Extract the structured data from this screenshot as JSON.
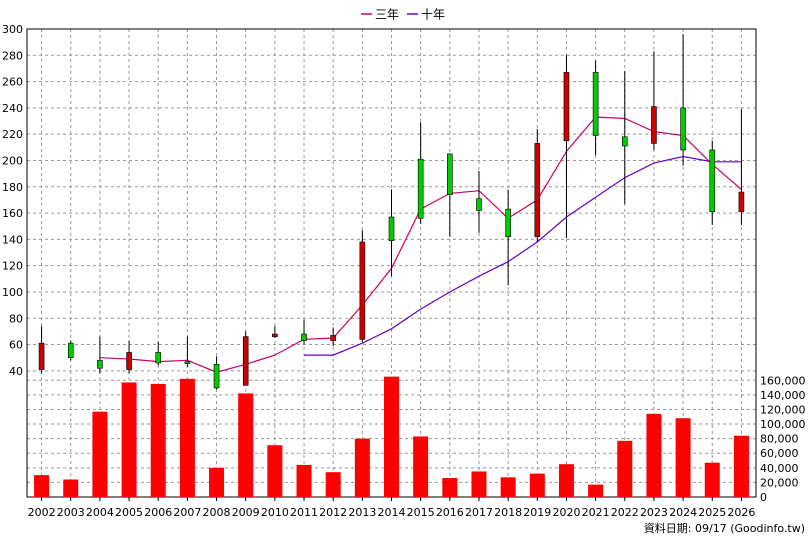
{
  "chart_data": {
    "type": "candlestick",
    "legend": {
      "position": "top-center",
      "items": [
        {
          "name": "三年",
          "color": "#cc0066"
        },
        {
          "name": "十年",
          "color": "#6600cc"
        }
      ]
    },
    "grid": true,
    "price_axis": {
      "ylim": [
        30,
        300
      ],
      "ticks": [
        40,
        60,
        80,
        100,
        120,
        140,
        160,
        180,
        200,
        220,
        240,
        260,
        280,
        300
      ]
    },
    "volume_axis": {
      "ylim": [
        0,
        170000
      ],
      "ticks": [
        "0",
        "20,000",
        "40,000",
        "60,000",
        "80,000",
        "100,000",
        "120,000",
        "140,000",
        "160,000"
      ],
      "tick_values": [
        0,
        20000,
        40000,
        60000,
        80000,
        100000,
        120000,
        140000,
        160000
      ]
    },
    "years": [
      "2002",
      "2003",
      "2004",
      "2005",
      "2006",
      "2007",
      "2008",
      "2009",
      "2010",
      "2011",
      "2012",
      "2013",
      "2014",
      "2015",
      "2016",
      "2017",
      "2018",
      "2019",
      "2020",
      "2021",
      "2022",
      "2023",
      "2024",
      "2025",
      "2026"
    ],
    "candles": [
      {
        "open": 61,
        "close": 41,
        "high": 74,
        "low": 38
      },
      {
        "open": 50,
        "close": 61,
        "high": 63,
        "low": 48
      },
      {
        "open": 42,
        "close": 48,
        "high": 66,
        "low": 38
      },
      {
        "open": 54,
        "close": 41,
        "high": 63,
        "low": 38
      },
      {
        "open": 46,
        "close": 54,
        "high": 62,
        "low": 44
      },
      {
        "open": 47,
        "close": 47,
        "high": 66,
        "low": 43
      },
      {
        "open": 27,
        "close": 45,
        "high": 51,
        "low": 26
      },
      {
        "open": 66,
        "close": 29,
        "high": 70,
        "low": 29
      },
      {
        "open": 68,
        "close": 66,
        "high": 74,
        "low": 65
      },
      {
        "open": 63,
        "close": 68,
        "high": 79,
        "low": 60
      },
      {
        "open": 67,
        "close": 63,
        "high": 73,
        "low": 59
      },
      {
        "open": 138,
        "close": 64,
        "high": 147,
        "low": 62
      },
      {
        "open": 139,
        "close": 157,
        "high": 178,
        "low": 112
      },
      {
        "open": 156,
        "close": 201,
        "high": 229,
        "low": 152
      },
      {
        "open": 174,
        "close": 205,
        "high": 205,
        "low": 142
      },
      {
        "open": 162,
        "close": 171,
        "high": 192,
        "low": 145
      },
      {
        "open": 142,
        "close": 163,
        "high": 178,
        "low": 105
      },
      {
        "open": 213,
        "close": 142,
        "high": 224,
        "low": 138
      },
      {
        "open": 267,
        "close": 215,
        "high": 280,
        "low": 141
      },
      {
        "open": 219,
        "close": 267,
        "high": 276,
        "low": 204
      },
      {
        "open": 211,
        "close": 218,
        "high": 268,
        "low": 167
      },
      {
        "open": 241,
        "close": 213,
        "high": 283,
        "low": 208
      },
      {
        "open": 208,
        "close": 240,
        "high": 296,
        "low": 196
      },
      {
        "open": 161,
        "close": 208,
        "high": 215,
        "low": 151
      },
      {
        "open": 176,
        "close": 161,
        "high": 239,
        "low": 151
      }
    ],
    "ma3": [
      null,
      null,
      50,
      49,
      47,
      48,
      39,
      45,
      52,
      64,
      65,
      90,
      118,
      163,
      175,
      177,
      156,
      170,
      207,
      233,
      232,
      222,
      219,
      197,
      178
    ],
    "ma10": [
      null,
      null,
      null,
      null,
      null,
      null,
      null,
      null,
      null,
      52,
      52,
      61,
      72,
      87,
      100,
      112,
      123,
      138,
      157,
      172,
      187,
      198,
      203,
      199,
      199
    ],
    "volumes": [
      30000,
      24000,
      117000,
      157000,
      155000,
      162000,
      40000,
      142000,
      71000,
      44000,
      34000,
      80000,
      165000,
      83000,
      26000,
      35000,
      27000,
      32000,
      45000,
      17000,
      77000,
      114000,
      108000,
      47000,
      84000
    ],
    "footer": "資料日期: 09/17  (Goodinfo.tw)"
  }
}
